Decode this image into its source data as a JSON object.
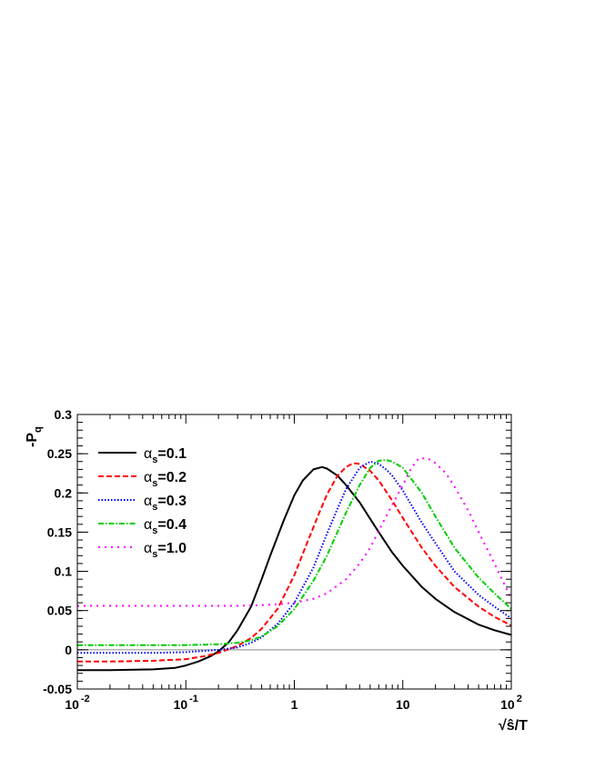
{
  "chart_data": {
    "type": "line",
    "xscale": "log",
    "xlim": [
      0.01,
      100
    ],
    "ylim": [
      -0.05,
      0.3
    ],
    "grid": false,
    "legend_position": "top-left",
    "xlabel": "√ŝ/T",
    "ylabel": "-P_q",
    "x_ticks": [
      {
        "value": 0.01,
        "base": "10",
        "exp": "-2"
      },
      {
        "value": 0.1,
        "base": "10",
        "exp": "-1"
      },
      {
        "value": 1,
        "base": "1",
        "exp": ""
      },
      {
        "value": 10,
        "base": "10",
        "exp": ""
      },
      {
        "value": 100,
        "base": "10",
        "exp": "2"
      }
    ],
    "y_ticks": [
      {
        "value": -0.05,
        "label": "-0.05"
      },
      {
        "value": 0,
        "label": "0"
      },
      {
        "value": 0.05,
        "label": "0.05"
      },
      {
        "value": 0.1,
        "label": "0.1"
      },
      {
        "value": 0.15,
        "label": "0.15"
      },
      {
        "value": 0.2,
        "label": "0.2"
      },
      {
        "value": 0.25,
        "label": "0.25"
      },
      {
        "value": 0.3,
        "label": "0.3"
      }
    ],
    "reference_line": {
      "y": 0,
      "color": "#888888"
    },
    "series": [
      {
        "name": "αs=0.1",
        "label_main": "α",
        "label_sub": "s",
        "label_rest": "=0.1",
        "color": "#000000",
        "dash": "solid",
        "x": [
          0.01,
          0.02,
          0.05,
          0.08,
          0.1,
          0.13,
          0.17,
          0.2,
          0.25,
          0.3,
          0.4,
          0.5,
          0.6,
          0.8,
          1.0,
          1.2,
          1.5,
          1.8,
          2.0,
          2.5,
          3,
          4,
          5,
          6,
          8,
          10,
          15,
          20,
          30,
          50,
          70,
          100
        ],
        "y": [
          -0.026,
          -0.026,
          -0.025,
          -0.023,
          -0.02,
          -0.015,
          -0.008,
          -0.002,
          0.01,
          0.025,
          0.055,
          0.09,
          0.12,
          0.165,
          0.197,
          0.216,
          0.23,
          0.233,
          0.231,
          0.222,
          0.21,
          0.188,
          0.167,
          0.15,
          0.124,
          0.107,
          0.08,
          0.065,
          0.048,
          0.032,
          0.025,
          0.019
        ]
      },
      {
        "name": "αs=0.2",
        "label_main": "α",
        "label_sub": "s",
        "label_rest": "=0.2",
        "color": "#ff0000",
        "dash": "6,3",
        "x": [
          0.01,
          0.02,
          0.05,
          0.1,
          0.15,
          0.2,
          0.3,
          0.4,
          0.5,
          0.7,
          1.0,
          1.3,
          1.7,
          2,
          2.5,
          3,
          3.5,
          4,
          5,
          6,
          8,
          10,
          15,
          20,
          30,
          50,
          70,
          100
        ],
        "y": [
          -0.015,
          -0.015,
          -0.014,
          -0.012,
          -0.008,
          -0.004,
          0.005,
          0.015,
          0.027,
          0.052,
          0.095,
          0.135,
          0.175,
          0.198,
          0.222,
          0.233,
          0.238,
          0.237,
          0.228,
          0.216,
          0.19,
          0.168,
          0.13,
          0.107,
          0.08,
          0.055,
          0.042,
          0.031
        ]
      },
      {
        "name": "αs=0.3",
        "label_main": "α",
        "label_sub": "s",
        "label_rest": "=0.3",
        "color": "#0000ff",
        "dash": "1.5,2",
        "x": [
          0.01,
          0.02,
          0.05,
          0.1,
          0.2,
          0.3,
          0.4,
          0.5,
          0.7,
          1.0,
          1.5,
          2,
          2.5,
          3,
          4,
          5,
          6,
          7,
          8,
          10,
          15,
          20,
          30,
          50,
          70,
          100
        ],
        "y": [
          -0.004,
          -0.004,
          -0.004,
          -0.003,
          0.0,
          0.003,
          0.009,
          0.016,
          0.033,
          0.06,
          0.105,
          0.148,
          0.18,
          0.205,
          0.232,
          0.24,
          0.237,
          0.23,
          0.222,
          0.203,
          0.162,
          0.136,
          0.1,
          0.07,
          0.055,
          0.04
        ]
      },
      {
        "name": "αs=0.4",
        "label_main": "α",
        "label_sub": "s",
        "label_rest": "=0.4",
        "color": "#00cc00",
        "dash": "6,2,1.5,2",
        "x": [
          0.01,
          0.02,
          0.05,
          0.1,
          0.2,
          0.3,
          0.4,
          0.5,
          0.7,
          1.0,
          1.5,
          2,
          3,
          4,
          5,
          6,
          7,
          8,
          10,
          15,
          20,
          30,
          50,
          70,
          100
        ],
        "y": [
          0.006,
          0.006,
          0.006,
          0.006,
          0.007,
          0.009,
          0.012,
          0.017,
          0.03,
          0.052,
          0.088,
          0.12,
          0.175,
          0.21,
          0.232,
          0.241,
          0.242,
          0.24,
          0.232,
          0.2,
          0.17,
          0.13,
          0.092,
          0.072,
          0.052
        ]
      },
      {
        "name": "αs=1.0",
        "label_main": "α",
        "label_sub": "s",
        "label_rest": "=1.0",
        "color": "#ff00ff",
        "dash": "2,5",
        "x": [
          0.01,
          0.05,
          0.1,
          0.2,
          0.3,
          0.5,
          0.7,
          1.0,
          1.5,
          2,
          3,
          4,
          5,
          7,
          10,
          12,
          14,
          17,
          20,
          25,
          30,
          40,
          50,
          70,
          100
        ],
        "y": [
          0.056,
          0.056,
          0.056,
          0.056,
          0.056,
          0.057,
          0.058,
          0.06,
          0.065,
          0.072,
          0.09,
          0.11,
          0.13,
          0.17,
          0.21,
          0.232,
          0.244,
          0.244,
          0.238,
          0.225,
          0.208,
          0.178,
          0.15,
          0.11,
          0.065
        ]
      }
    ]
  }
}
